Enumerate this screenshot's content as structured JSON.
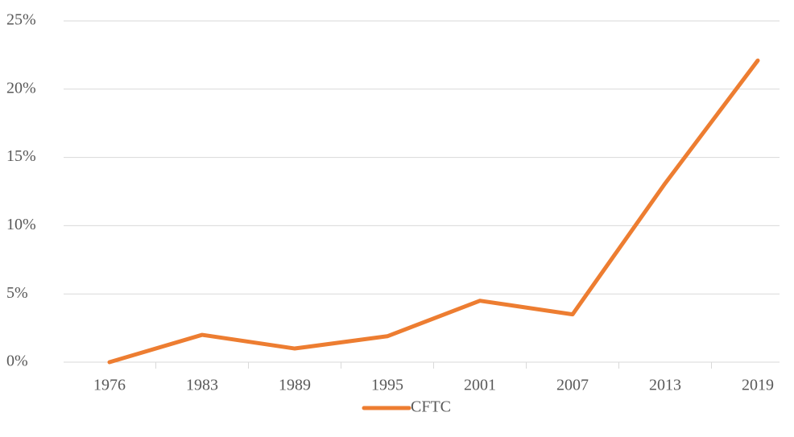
{
  "chart_data": {
    "type": "line",
    "categories": [
      "1976",
      "1983",
      "1989",
      "1995",
      "2001",
      "2007",
      "2013",
      "2019"
    ],
    "series": [
      {
        "name": "CFTC",
        "color": "#ed7d31",
        "values": [
          0,
          2.0,
          1.0,
          1.9,
          4.5,
          3.5,
          13.1,
          22.1
        ]
      }
    ],
    "ylim": [
      0,
      25
    ],
    "yticks": [
      {
        "value": 0,
        "label": "0%"
      },
      {
        "value": 5,
        "label": "5%"
      },
      {
        "value": 10,
        "label": "10%"
      },
      {
        "value": 15,
        "label": "15%"
      },
      {
        "value": 20,
        "label": "20%"
      },
      {
        "value": 25,
        "label": "25%"
      }
    ],
    "grid": true,
    "legend": "bottom"
  }
}
